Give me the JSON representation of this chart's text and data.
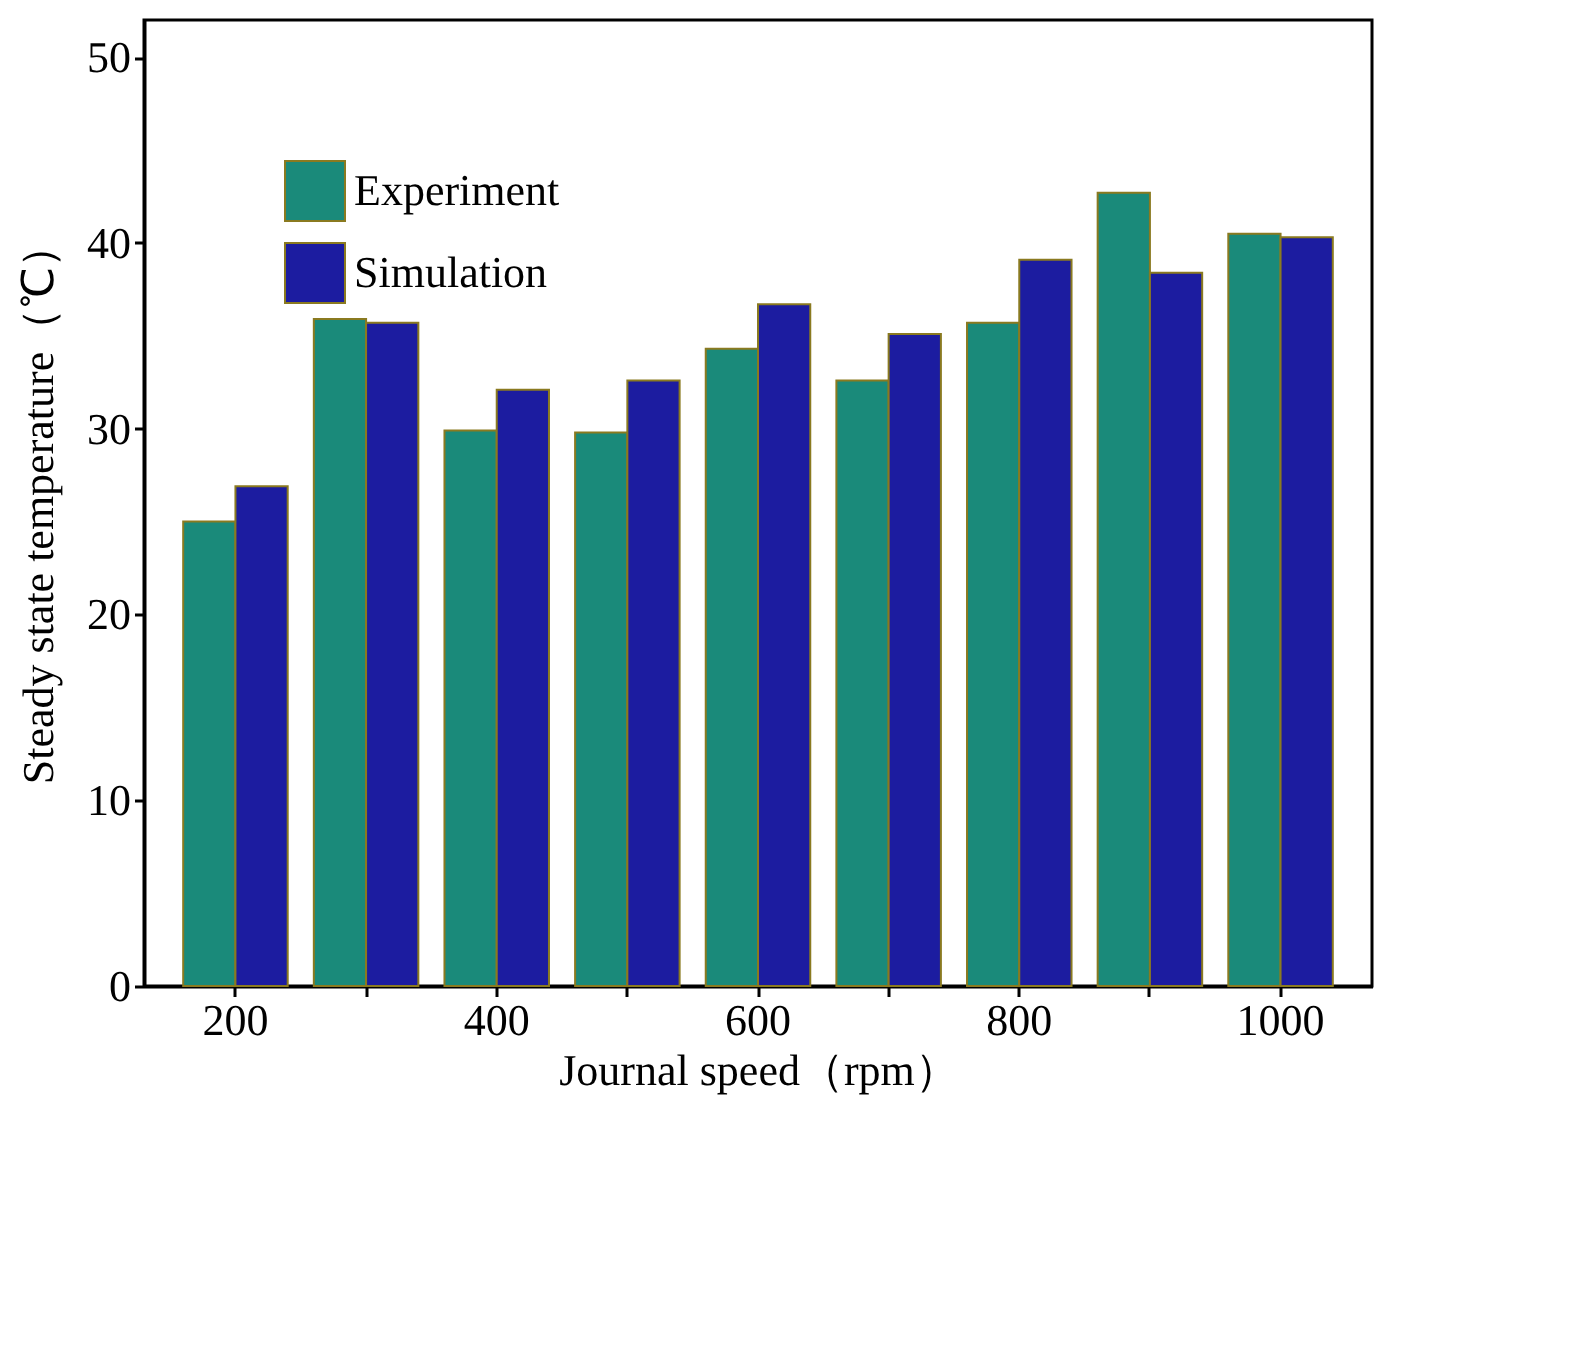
{
  "chart_data": {
    "type": "bar",
    "xlabel": "Journal speed（rpm）",
    "ylabel": "Steady state temperature（℃）",
    "categories": [
      "200",
      null,
      "400",
      null,
      "600",
      null,
      "800",
      null,
      "1000"
    ],
    "series": [
      {
        "name": "Experiment",
        "color": "#1a8a7a",
        "values": [
          25,
          35.9,
          29.9,
          29.8,
          34.3,
          32.6,
          35.7,
          42.7,
          40.5
        ]
      },
      {
        "name": "Simulation",
        "color": "#1c1ca0",
        "values": [
          26.9,
          35.7,
          32.1,
          32.6,
          36.7,
          35.1,
          39.1,
          38.4,
          40.3
        ]
      }
    ],
    "ylim": [
      0,
      52
    ],
    "yticks": [
      0,
      10,
      20,
      30,
      40,
      50
    ],
    "grid": false,
    "legend": "top left"
  }
}
